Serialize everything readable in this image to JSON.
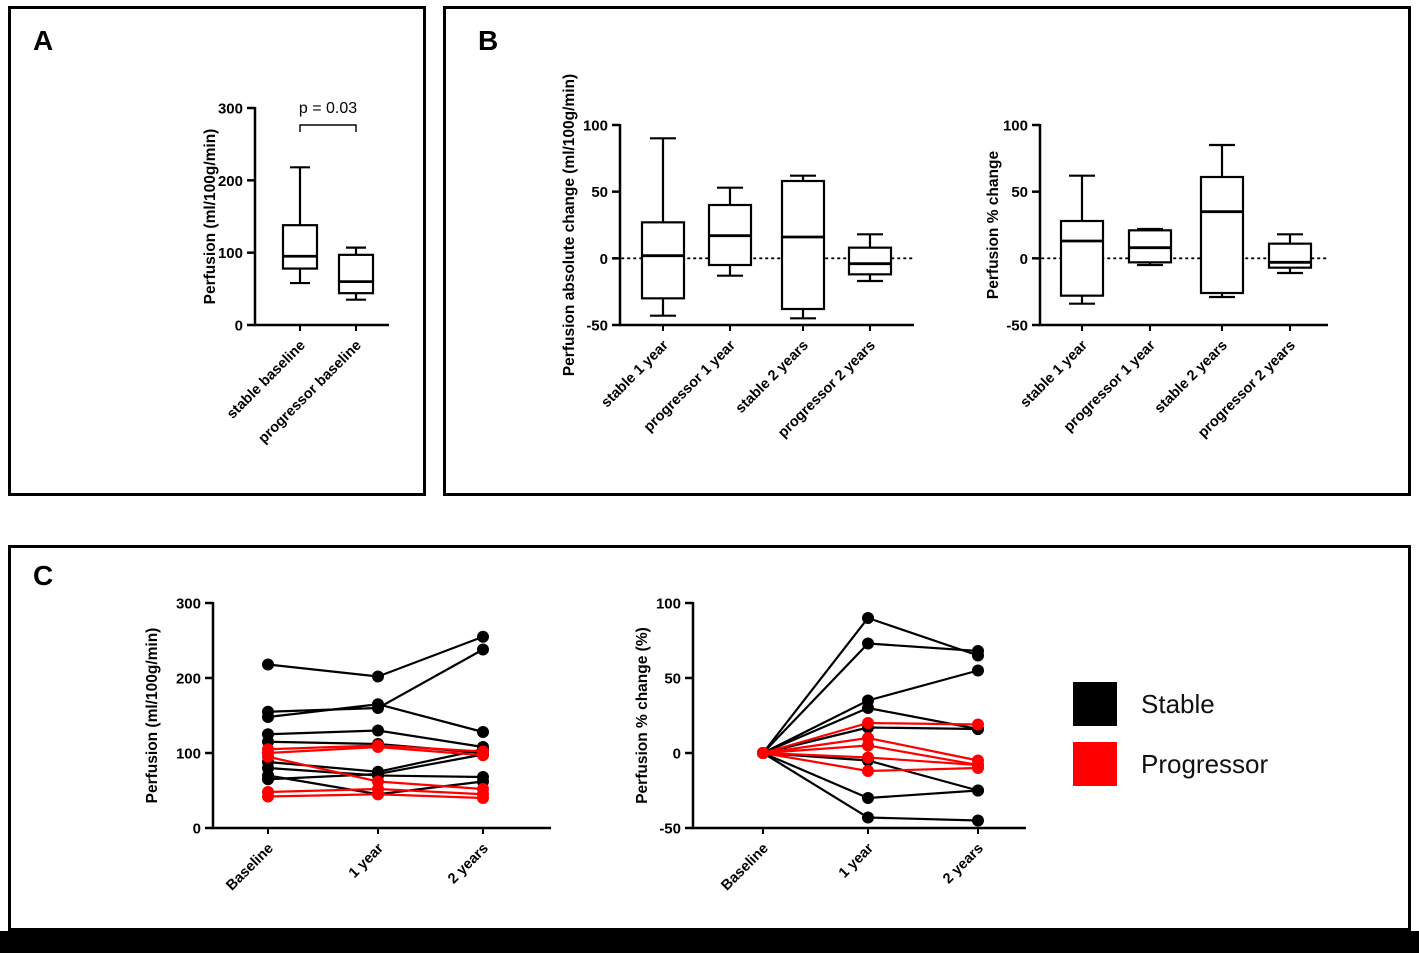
{
  "figure": {
    "panel_a_label": "A",
    "panel_b_label": "B",
    "panel_c_label": "C"
  },
  "legend": {
    "items": [
      {
        "label": "Stable",
        "color": "#000000"
      },
      {
        "label": "Progressor",
        "color": "#ff0000"
      }
    ]
  },
  "chart_data": [
    {
      "id": "baseline-perfusion-box",
      "type": "box",
      "ylabel": "Perfusion (ml/100g/min)",
      "ylim": [
        0,
        300
      ],
      "yticks": [
        0,
        100,
        200,
        300
      ],
      "categories": [
        "stable baseline",
        "progressor baseline"
      ],
      "boxes": [
        {
          "min": 58,
          "q1": 78,
          "median": 95,
          "q3": 138,
          "max": 218
        },
        {
          "min": 35,
          "q1": 44,
          "median": 60,
          "q3": 97,
          "max": 107
        }
      ],
      "annotation": {
        "text": "p = 0.03"
      }
    },
    {
      "id": "absolute-change-box",
      "type": "box",
      "ylabel": "Perfusion absolute change (ml/100g/min)",
      "ylim": [
        -50,
        100
      ],
      "yticks": [
        -50,
        0,
        50,
        100
      ],
      "zeroline": true,
      "categories": [
        "stable 1 year",
        "progressor 1 year",
        "stable 2 years",
        "progressor 2 years"
      ],
      "boxes": [
        {
          "min": -43,
          "q1": -30,
          "median": 2,
          "q3": 27,
          "max": 90
        },
        {
          "min": -13,
          "q1": -5,
          "median": 17,
          "q3": 40,
          "max": 53
        },
        {
          "min": -45,
          "q1": -38,
          "median": 16,
          "q3": 58,
          "max": 62
        },
        {
          "min": -17,
          "q1": -12,
          "median": -4,
          "q3": 8,
          "max": 18
        }
      ]
    },
    {
      "id": "percent-change-box",
      "type": "box",
      "ylabel": "Perfusion % change",
      "ylim": [
        -50,
        100
      ],
      "yticks": [
        -50,
        0,
        50,
        100
      ],
      "zeroline": true,
      "categories": [
        "stable 1 year",
        "progressor 1 year",
        "stable 2 years",
        "progressor 2 years"
      ],
      "boxes": [
        {
          "min": -34,
          "q1": -28,
          "median": 13,
          "q3": 28,
          "max": 62
        },
        {
          "min": -5,
          "q1": -3,
          "median": 8,
          "q3": 21,
          "max": 22
        },
        {
          "min": -29,
          "q1": -26,
          "median": 35,
          "q3": 61,
          "max": 85
        },
        {
          "min": -11,
          "q1": -7,
          "median": -3,
          "q3": 11,
          "max": 18
        }
      ]
    },
    {
      "id": "perfusion-trajectories",
      "type": "line",
      "ylabel": "Perfusion (ml/100g/min)",
      "ylim": [
        0,
        300
      ],
      "yticks": [
        0,
        100,
        200,
        300
      ],
      "categories": [
        "Baseline",
        "1 year",
        "2 years"
      ],
      "series": [
        {
          "name": "Stable",
          "color": "#000000",
          "subjects": [
            [
              218,
              202,
              255
            ],
            [
              155,
              160,
              238
            ],
            [
              148,
              165,
              128
            ],
            [
              125,
              130,
              108
            ],
            [
              115,
              112,
              100
            ],
            [
              88,
              75,
              105
            ],
            [
              80,
              70,
              68
            ],
            [
              70,
              45,
              62
            ],
            [
              65,
              72,
              98
            ]
          ]
        },
        {
          "name": "Progressor",
          "color": "#ff0000",
          "subjects": [
            [
              105,
              110,
              102
            ],
            [
              100,
              108,
              97
            ],
            [
              95,
              62,
              52
            ],
            [
              48,
              52,
              45
            ],
            [
              42,
              45,
              40
            ]
          ]
        }
      ]
    },
    {
      "id": "percent-change-trajectories",
      "type": "line",
      "ylabel": "Perfusion % change (%)",
      "ylim": [
        -50,
        100
      ],
      "yticks": [
        -50,
        0,
        50,
        100
      ],
      "categories": [
        "Baseline",
        "1 year",
        "2 years"
      ],
      "series": [
        {
          "name": "Stable",
          "color": "#000000",
          "subjects": [
            [
              0,
              90,
              65
            ],
            [
              0,
              73,
              68
            ],
            [
              0,
              35,
              55
            ],
            [
              0,
              30,
              16
            ],
            [
              0,
              17,
              16
            ],
            [
              0,
              -5,
              -25
            ],
            [
              0,
              -30,
              -25
            ],
            [
              0,
              -43,
              -45
            ]
          ]
        },
        {
          "name": "Progressor",
          "color": "#ff0000",
          "subjects": [
            [
              0,
              20,
              19
            ],
            [
              0,
              10,
              -5
            ],
            [
              0,
              5,
              -8
            ],
            [
              0,
              -3,
              -8
            ],
            [
              0,
              -12,
              -10
            ]
          ]
        }
      ]
    }
  ]
}
